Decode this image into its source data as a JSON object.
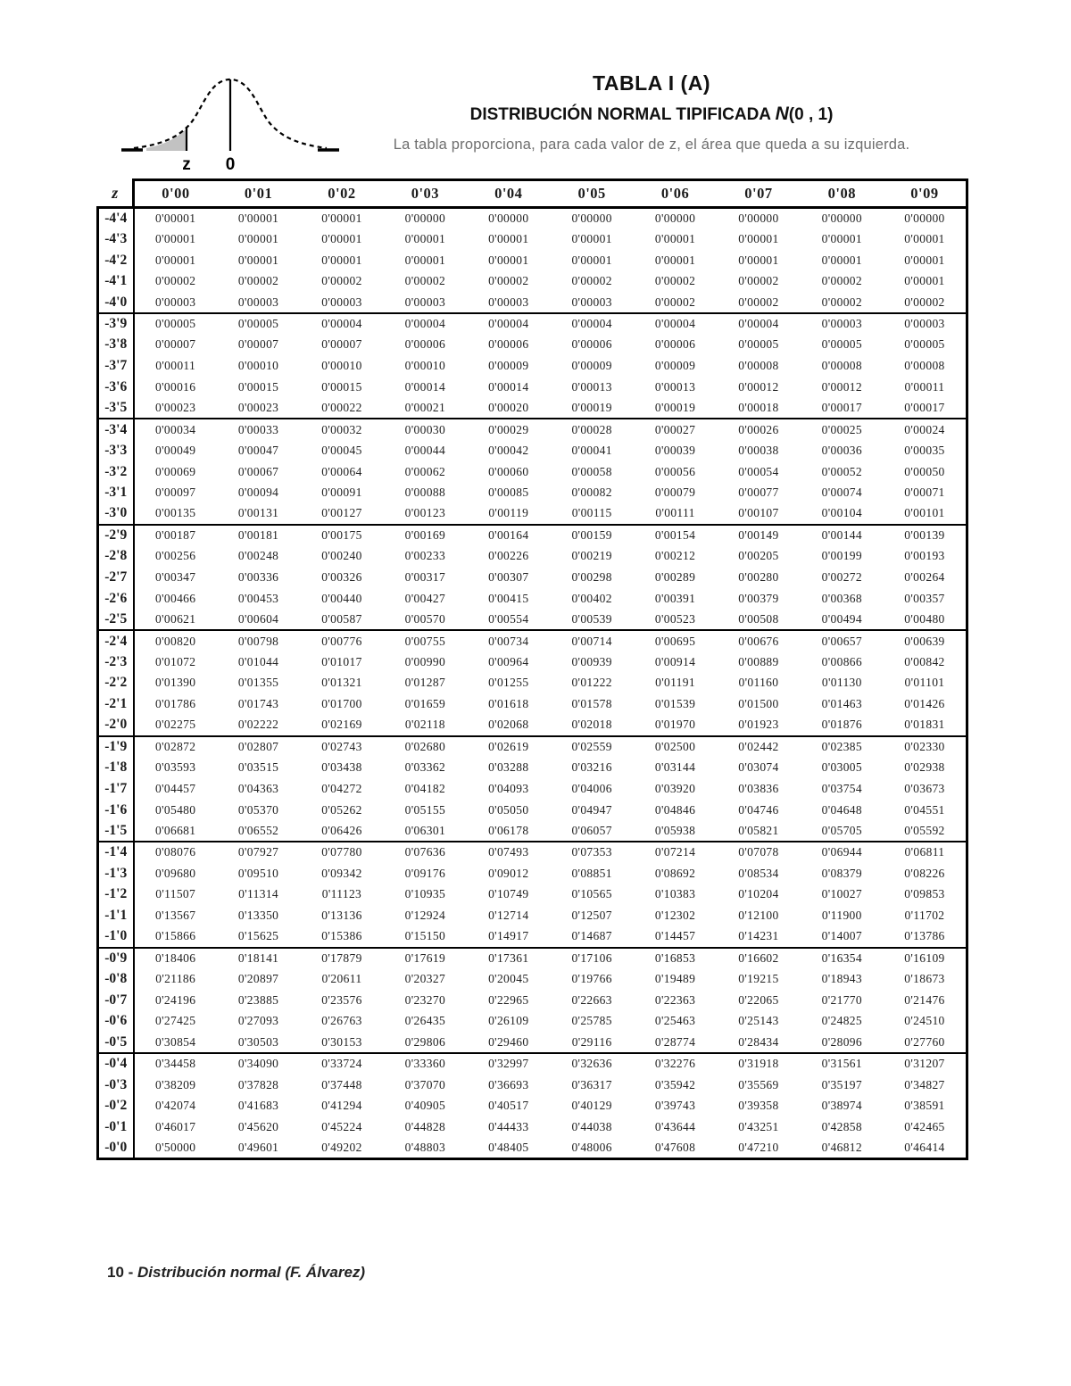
{
  "page": {
    "title": "TABLA I (A)",
    "subtitle_prefix": "DISTRIBUCIÓN NORMAL TIPIFICADA",
    "subtitle_n": "N",
    "subtitle_args": "(0 , 1)",
    "caption": "La tabla proporciona, para cada valor de z, el área que queda a su izquierda.",
    "footer_num": "10 - ",
    "footer_text": "Distribución normal (F. Álvarez)"
  },
  "graphic": {
    "label_z": "z",
    "label_zero": "0",
    "shade_color": "#c2c2c2",
    "line_color": "#000000"
  },
  "table": {
    "corner_header": "z",
    "col_headers": [
      "0'00",
      "0'01",
      "0'02",
      "0'03",
      "0'04",
      "0'05",
      "0'06",
      "0'07",
      "0'08",
      "0'09"
    ],
    "row_groups": [
      {
        "rows": [
          {
            "z": "-4'4",
            "v": [
              "0'00001",
              "0'00001",
              "0'00001",
              "0'00000",
              "0'00000",
              "0'00000",
              "0'00000",
              "0'00000",
              "0'00000",
              "0'00000"
            ]
          },
          {
            "z": "-4'3",
            "v": [
              "0'00001",
              "0'00001",
              "0'00001",
              "0'00001",
              "0'00001",
              "0'00001",
              "0'00001",
              "0'00001",
              "0'00001",
              "0'00001"
            ]
          },
          {
            "z": "-4'2",
            "v": [
              "0'00001",
              "0'00001",
              "0'00001",
              "0'00001",
              "0'00001",
              "0'00001",
              "0'00001",
              "0'00001",
              "0'00001",
              "0'00001"
            ]
          },
          {
            "z": "-4'1",
            "v": [
              "0'00002",
              "0'00002",
              "0'00002",
              "0'00002",
              "0'00002",
              "0'00002",
              "0'00002",
              "0'00002",
              "0'00002",
              "0'00001"
            ]
          },
          {
            "z": "-4'0",
            "v": [
              "0'00003",
              "0'00003",
              "0'00003",
              "0'00003",
              "0'00003",
              "0'00003",
              "0'00002",
              "0'00002",
              "0'00002",
              "0'00002"
            ]
          }
        ]
      },
      {
        "rows": [
          {
            "z": "-3'9",
            "v": [
              "0'00005",
              "0'00005",
              "0'00004",
              "0'00004",
              "0'00004",
              "0'00004",
              "0'00004",
              "0'00004",
              "0'00003",
              "0'00003"
            ]
          },
          {
            "z": "-3'8",
            "v": [
              "0'00007",
              "0'00007",
              "0'00007",
              "0'00006",
              "0'00006",
              "0'00006",
              "0'00006",
              "0'00005",
              "0'00005",
              "0'00005"
            ]
          },
          {
            "z": "-3'7",
            "v": [
              "0'00011",
              "0'00010",
              "0'00010",
              "0'00010",
              "0'00009",
              "0'00009",
              "0'00009",
              "0'00008",
              "0'00008",
              "0'00008"
            ]
          },
          {
            "z": "-3'6",
            "v": [
              "0'00016",
              "0'00015",
              "0'00015",
              "0'00014",
              "0'00014",
              "0'00013",
              "0'00013",
              "0'00012",
              "0'00012",
              "0'00011"
            ]
          },
          {
            "z": "-3'5",
            "v": [
              "0'00023",
              "0'00023",
              "0'00022",
              "0'00021",
              "0'00020",
              "0'00019",
              "0'00019",
              "0'00018",
              "0'00017",
              "0'00017"
            ]
          }
        ]
      },
      {
        "rows": [
          {
            "z": "-3'4",
            "v": [
              "0'00034",
              "0'00033",
              "0'00032",
              "0'00030",
              "0'00029",
              "0'00028",
              "0'00027",
              "0'00026",
              "0'00025",
              "0'00024"
            ]
          },
          {
            "z": "-3'3",
            "v": [
              "0'00049",
              "0'00047",
              "0'00045",
              "0'00044",
              "0'00042",
              "0'00041",
              "0'00039",
              "0'00038",
              "0'00036",
              "0'00035"
            ]
          },
          {
            "z": "-3'2",
            "v": [
              "0'00069",
              "0'00067",
              "0'00064",
              "0'00062",
              "0'00060",
              "0'00058",
              "0'00056",
              "0'00054",
              "0'00052",
              "0'00050"
            ]
          },
          {
            "z": "-3'1",
            "v": [
              "0'00097",
              "0'00094",
              "0'00091",
              "0'00088",
              "0'00085",
              "0'00082",
              "0'00079",
              "0'00077",
              "0'00074",
              "0'00071"
            ]
          },
          {
            "z": "-3'0",
            "v": [
              "0'00135",
              "0'00131",
              "0'00127",
              "0'00123",
              "0'00119",
              "0'00115",
              "0'00111",
              "0'00107",
              "0'00104",
              "0'00101"
            ]
          }
        ]
      },
      {
        "rows": [
          {
            "z": "-2'9",
            "v": [
              "0'00187",
              "0'00181",
              "0'00175",
              "0'00169",
              "0'00164",
              "0'00159",
              "0'00154",
              "0'00149",
              "0'00144",
              "0'00139"
            ]
          },
          {
            "z": "-2'8",
            "v": [
              "0'00256",
              "0'00248",
              "0'00240",
              "0'00233",
              "0'00226",
              "0'00219",
              "0'00212",
              "0'00205",
              "0'00199",
              "0'00193"
            ]
          },
          {
            "z": "-2'7",
            "v": [
              "0'00347",
              "0'00336",
              "0'00326",
              "0'00317",
              "0'00307",
              "0'00298",
              "0'00289",
              "0'00280",
              "0'00272",
              "0'00264"
            ]
          },
          {
            "z": "-2'6",
            "v": [
              "0'00466",
              "0'00453",
              "0'00440",
              "0'00427",
              "0'00415",
              "0'00402",
              "0'00391",
              "0'00379",
              "0'00368",
              "0'00357"
            ]
          },
          {
            "z": "-2'5",
            "v": [
              "0'00621",
              "0'00604",
              "0'00587",
              "0'00570",
              "0'00554",
              "0'00539",
              "0'00523",
              "0'00508",
              "0'00494",
              "0'00480"
            ]
          }
        ]
      },
      {
        "rows": [
          {
            "z": "-2'4",
            "v": [
              "0'00820",
              "0'00798",
              "0'00776",
              "0'00755",
              "0'00734",
              "0'00714",
              "0'00695",
              "0'00676",
              "0'00657",
              "0'00639"
            ]
          },
          {
            "z": "-2'3",
            "v": [
              "0'01072",
              "0'01044",
              "0'01017",
              "0'00990",
              "0'00964",
              "0'00939",
              "0'00914",
              "0'00889",
              "0'00866",
              "0'00842"
            ]
          },
          {
            "z": "-2'2",
            "v": [
              "0'01390",
              "0'01355",
              "0'01321",
              "0'01287",
              "0'01255",
              "0'01222",
              "0'01191",
              "0'01160",
              "0'01130",
              "0'01101"
            ]
          },
          {
            "z": "-2'1",
            "v": [
              "0'01786",
              "0'01743",
              "0'01700",
              "0'01659",
              "0'01618",
              "0'01578",
              "0'01539",
              "0'01500",
              "0'01463",
              "0'01426"
            ]
          },
          {
            "z": "-2'0",
            "v": [
              "0'02275",
              "0'02222",
              "0'02169",
              "0'02118",
              "0'02068",
              "0'02018",
              "0'01970",
              "0'01923",
              "0'01876",
              "0'01831"
            ]
          }
        ]
      },
      {
        "rows": [
          {
            "z": "-1'9",
            "v": [
              "0'02872",
              "0'02807",
              "0'02743",
              "0'02680",
              "0'02619",
              "0'02559",
              "0'02500",
              "0'02442",
              "0'02385",
              "0'02330"
            ]
          },
          {
            "z": "-1'8",
            "v": [
              "0'03593",
              "0'03515",
              "0'03438",
              "0'03362",
              "0'03288",
              "0'03216",
              "0'03144",
              "0'03074",
              "0'03005",
              "0'02938"
            ]
          },
          {
            "z": "-1'7",
            "v": [
              "0'04457",
              "0'04363",
              "0'04272",
              "0'04182",
              "0'04093",
              "0'04006",
              "0'03920",
              "0'03836",
              "0'03754",
              "0'03673"
            ]
          },
          {
            "z": "-1'6",
            "v": [
              "0'05480",
              "0'05370",
              "0'05262",
              "0'05155",
              "0'05050",
              "0'04947",
              "0'04846",
              "0'04746",
              "0'04648",
              "0'04551"
            ]
          },
          {
            "z": "-1'5",
            "v": [
              "0'06681",
              "0'06552",
              "0'06426",
              "0'06301",
              "0'06178",
              "0'06057",
              "0'05938",
              "0'05821",
              "0'05705",
              "0'05592"
            ]
          }
        ]
      },
      {
        "rows": [
          {
            "z": "-1'4",
            "v": [
              "0'08076",
              "0'07927",
              "0'07780",
              "0'07636",
              "0'07493",
              "0'07353",
              "0'07214",
              "0'07078",
              "0'06944",
              "0'06811"
            ]
          },
          {
            "z": "-1'3",
            "v": [
              "0'09680",
              "0'09510",
              "0'09342",
              "0'09176",
              "0'09012",
              "0'08851",
              "0'08692",
              "0'08534",
              "0'08379",
              "0'08226"
            ]
          },
          {
            "z": "-1'2",
            "v": [
              "0'11507",
              "0'11314",
              "0'11123",
              "0'10935",
              "0'10749",
              "0'10565",
              "0'10383",
              "0'10204",
              "0'10027",
              "0'09853"
            ]
          },
          {
            "z": "-1'1",
            "v": [
              "0'13567",
              "0'13350",
              "0'13136",
              "0'12924",
              "0'12714",
              "0'12507",
              "0'12302",
              "0'12100",
              "0'11900",
              "0'11702"
            ]
          },
          {
            "z": "-1'0",
            "v": [
              "0'15866",
              "0'15625",
              "0'15386",
              "0'15150",
              "0'14917",
              "0'14687",
              "0'14457",
              "0'14231",
              "0'14007",
              "0'13786"
            ]
          }
        ]
      },
      {
        "rows": [
          {
            "z": "-0'9",
            "v": [
              "0'18406",
              "0'18141",
              "0'17879",
              "0'17619",
              "0'17361",
              "0'17106",
              "0'16853",
              "0'16602",
              "0'16354",
              "0'16109"
            ]
          },
          {
            "z": "-0'8",
            "v": [
              "0'21186",
              "0'20897",
              "0'20611",
              "0'20327",
              "0'20045",
              "0'19766",
              "0'19489",
              "0'19215",
              "0'18943",
              "0'18673"
            ]
          },
          {
            "z": "-0'7",
            "v": [
              "0'24196",
              "0'23885",
              "0'23576",
              "0'23270",
              "0'22965",
              "0'22663",
              "0'22363",
              "0'22065",
              "0'21770",
              "0'21476"
            ]
          },
          {
            "z": "-0'6",
            "v": [
              "0'27425",
              "0'27093",
              "0'26763",
              "0'26435",
              "0'26109",
              "0'25785",
              "0'25463",
              "0'25143",
              "0'24825",
              "0'24510"
            ]
          },
          {
            "z": "-0'5",
            "v": [
              "0'30854",
              "0'30503",
              "0'30153",
              "0'29806",
              "0'29460",
              "0'29116",
              "0'28774",
              "0'28434",
              "0'28096",
              "0'27760"
            ]
          }
        ]
      },
      {
        "rows": [
          {
            "z": "-0'4",
            "v": [
              "0'34458",
              "0'34090",
              "0'33724",
              "0'33360",
              "0'32997",
              "0'32636",
              "0'32276",
              "0'31918",
              "0'31561",
              "0'31207"
            ]
          },
          {
            "z": "-0'3",
            "v": [
              "0'38209",
              "0'37828",
              "0'37448",
              "0'37070",
              "0'36693",
              "0'36317",
              "0'35942",
              "0'35569",
              "0'35197",
              "0'34827"
            ]
          },
          {
            "z": "-0'2",
            "v": [
              "0'42074",
              "0'41683",
              "0'41294",
              "0'40905",
              "0'40517",
              "0'40129",
              "0'39743",
              "0'39358",
              "0'38974",
              "0'38591"
            ]
          },
          {
            "z": "-0'1",
            "v": [
              "0'46017",
              "0'45620",
              "0'45224",
              "0'44828",
              "0'44433",
              "0'44038",
              "0'43644",
              "0'43251",
              "0'42858",
              "0'42465"
            ]
          },
          {
            "z": "-0'0",
            "v": [
              "0'50000",
              "0'49601",
              "0'49202",
              "0'48803",
              "0'48405",
              "0'48006",
              "0'47608",
              "0'47210",
              "0'46812",
              "0'46414"
            ]
          }
        ]
      }
    ]
  }
}
